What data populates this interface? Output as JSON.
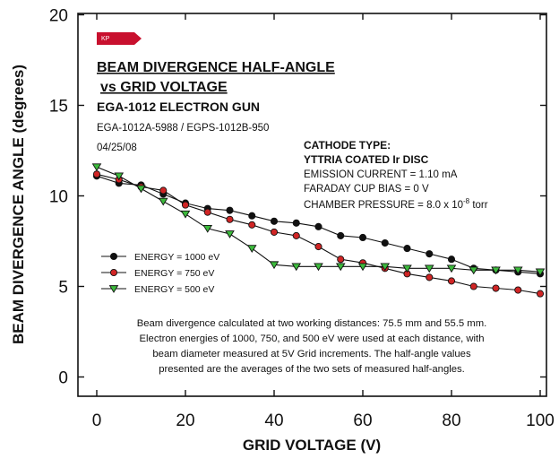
{
  "chart_data": {
    "type": "line",
    "xlabel": "GRID VOLTAGE (V)",
    "ylabel": "BEAM DIVERGENCE ANGLE (degrees)",
    "xlim": [
      0,
      100
    ],
    "ylim": [
      0,
      20
    ],
    "x_ticks": [
      "0",
      "20",
      "40",
      "60",
      "80",
      "100"
    ],
    "y_ticks": [
      "0",
      "5",
      "10",
      "15",
      "20"
    ],
    "grid": false,
    "legend_position": "left-middle",
    "logo_text": "KP",
    "title_lines": [
      "BEAM DIVERGENCE HALF-ANGLE",
      "vs GRID VOLTAGE"
    ],
    "subtitle": "EGA-1012 ELECTRON GUN",
    "model_line": "EGA-1012A-5988 / EGPS-1012B-950",
    "date": "04/25/08",
    "cathode": {
      "heading": "CATHODE TYPE:",
      "type": "YTTRIA COATED Ir DISC",
      "emission_current": "EMISSION CURRENT = 1.10 mA",
      "faraday_bias": "FARADAY CUP BIAS = 0 V",
      "pressure_prefix": "CHAMBER PRESSURE = 8.0 x 10",
      "pressure_exp": "-8",
      "pressure_unit": " torr"
    },
    "note_lines": [
      "Beam divergence calculated at two working distances:  75.5 mm and 55.5 mm.",
      "Electron energies of 1000, 750, and 500 eV were used at each distance, with",
      "beam diameter measured at 5V Grid increments.  The half-angle values",
      "presented are the averages of the two sets of measured half-angles."
    ],
    "x": [
      0,
      5,
      10,
      15,
      20,
      25,
      30,
      35,
      40,
      45,
      50,
      55,
      60,
      65,
      70,
      75,
      80,
      85,
      90,
      95,
      100
    ],
    "series": [
      {
        "name": "ENERGY = 1000 eV",
        "marker": "circle",
        "color": "#111111",
        "values": [
          11.1,
          10.7,
          10.6,
          10.1,
          9.6,
          9.3,
          9.2,
          8.9,
          8.6,
          8.5,
          8.3,
          7.8,
          7.7,
          7.4,
          7.1,
          6.8,
          6.5,
          6.0,
          5.9,
          5.8,
          5.7
        ]
      },
      {
        "name": "ENERGY =  750 eV",
        "marker": "circle",
        "color": "#d02525",
        "values": [
          11.2,
          10.9,
          10.5,
          10.3,
          9.5,
          9.1,
          8.7,
          8.4,
          8.0,
          7.8,
          7.2,
          6.5,
          6.3,
          6.0,
          5.7,
          5.5,
          5.3,
          5.0,
          4.9,
          4.8,
          4.6
        ]
      },
      {
        "name": "ENERGY =  500 eV",
        "marker": "triangle-down",
        "color": "#3cba3c",
        "values": [
          11.6,
          11.1,
          10.4,
          9.7,
          9.0,
          8.2,
          7.9,
          7.1,
          6.2,
          6.1,
          6.1,
          6.1,
          6.1,
          6.1,
          6.0,
          6.0,
          6.0,
          5.9,
          5.9,
          5.9,
          5.8
        ]
      }
    ]
  }
}
